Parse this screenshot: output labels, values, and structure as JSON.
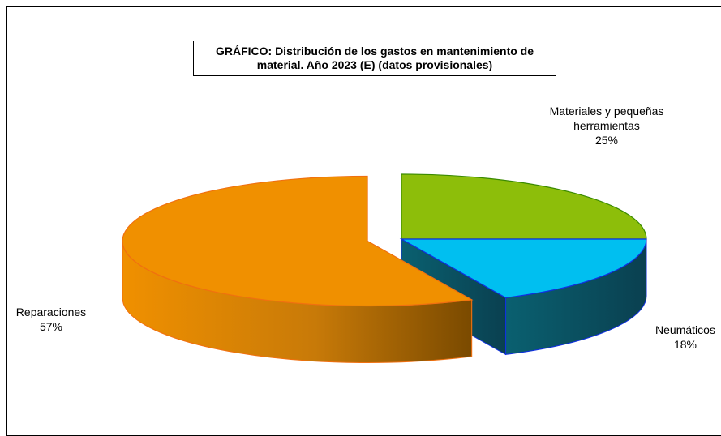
{
  "chart_data": {
    "type": "pie3d",
    "title": "GRÁFICO: Distribución  de los gastos en mantenimiento de material. Año 2023 (E) (datos provisionales)",
    "categories": [
      "Materiales y pequeñas herramientas",
      "Neumáticos",
      "Reparaciones"
    ],
    "values": [
      25,
      18,
      57
    ],
    "value_labels": [
      "25%",
      "18%",
      "57%"
    ],
    "colors": [
      "#8dbe0a",
      "#00bff0",
      "#f09000"
    ],
    "edge_colors": [
      "#3a8a00",
      "#1030e0",
      "#f07010"
    ]
  }
}
